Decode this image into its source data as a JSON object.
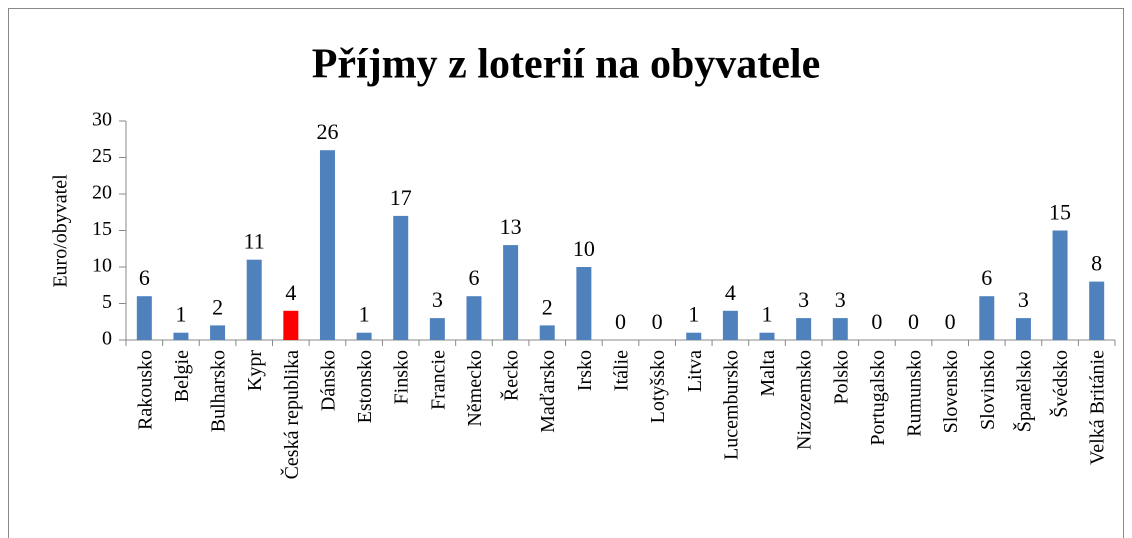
{
  "chart_data": {
    "type": "bar",
    "title": "Příjmy z loterií na obyvatele",
    "y_label": "Euro/obyvatel",
    "categories": [
      "Rakousko",
      "Belgie",
      "Bulharsko",
      "Kypr",
      "Česká republika",
      "Dánsko",
      "Estonsko",
      "Finsko",
      "Francie",
      "Německo",
      "Řecko",
      "Maďarsko",
      "Irsko",
      "Itálie",
      "Lotyšsko",
      "Litva",
      "Lucembursko",
      "Malta",
      "Nizozemsko",
      "Polsko",
      "Portugalsko",
      "Rumunsko",
      "Slovensko",
      "Slovinsko",
      "Španělsko",
      "Švédsko",
      "Velká Británie"
    ],
    "values": [
      6,
      1,
      2,
      11,
      4,
      26,
      1,
      17,
      3,
      6,
      13,
      2,
      10,
      0,
      0,
      1,
      4,
      1,
      3,
      3,
      0,
      0,
      0,
      6,
      3,
      15,
      8
    ],
    "colors": [
      "#4f81bd",
      "#4f81bd",
      "#4f81bd",
      "#4f81bd",
      "#ff0000",
      "#4f81bd",
      "#4f81bd",
      "#4f81bd",
      "#4f81bd",
      "#4f81bd",
      "#4f81bd",
      "#4f81bd",
      "#4f81bd",
      "#4f81bd",
      "#4f81bd",
      "#4f81bd",
      "#4f81bd",
      "#4f81bd",
      "#4f81bd",
      "#4f81bd",
      "#4f81bd",
      "#4f81bd",
      "#4f81bd",
      "#4f81bd",
      "#4f81bd",
      "#4f81bd",
      "#4f81bd"
    ],
    "ylim": [
      0,
      30
    ],
    "yticks": [
      0,
      5,
      10,
      15,
      20,
      25,
      30
    ],
    "grid": false
  }
}
